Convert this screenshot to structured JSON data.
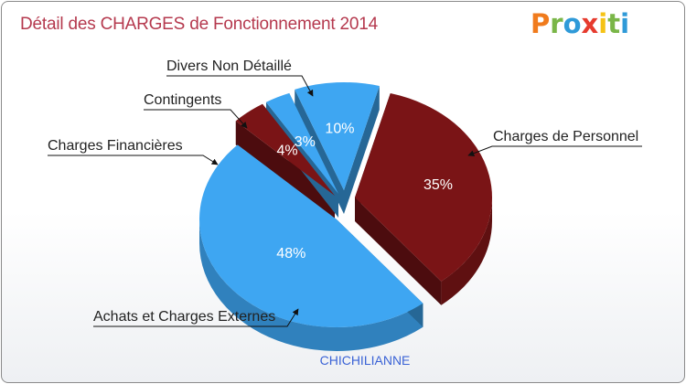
{
  "header": {
    "title": "Détail des CHARGES de Fonctionnement 2014",
    "logo_text": "Proxiti"
  },
  "chart_data": {
    "type": "pie",
    "title": "Détail des CHARGES de Fonctionnement 2014",
    "subtitle": "CHICHILIANNE",
    "categories": [
      "Charges de Personnel",
      "Achats et Charges Externes",
      "Charges Financières",
      "Contingents",
      "Divers Non Détaillé"
    ],
    "values": [
      35,
      48,
      4,
      3,
      10
    ],
    "labels": [
      "35%",
      "48%",
      "4%",
      "3%",
      "10%"
    ],
    "colors": [
      "#7a1416",
      "#3ea6f2",
      "#7a1416",
      "#3ea6f2",
      "#3ea6f2"
    ],
    "style": "3d-exploded"
  }
}
